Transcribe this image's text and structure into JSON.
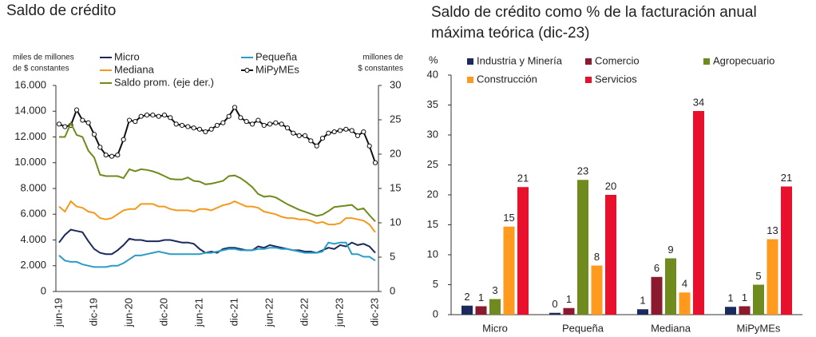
{
  "chart_data": [
    {
      "type": "line",
      "title": [
        "Saldo de crédito"
      ],
      "y_label": [
        "miles de millones",
        "de $ constantes"
      ],
      "y2_label": [
        "millones de",
        "$ constantes"
      ],
      "categories": [
        "jun-19",
        null,
        null,
        null,
        null,
        null,
        "dic-19",
        null,
        null,
        null,
        null,
        null,
        "jun-20",
        null,
        null,
        null,
        null,
        null,
        "dic-20",
        null,
        null,
        null,
        null,
        null,
        "jun-21",
        null,
        null,
        null,
        null,
        null,
        "dic-21",
        null,
        null,
        null,
        null,
        null,
        "jun-22",
        null,
        null,
        null,
        null,
        null,
        "dic-22",
        null,
        null,
        null,
        null,
        null,
        "jun-23",
        null,
        null,
        null,
        null,
        null,
        "dic-23"
      ],
      "ylim": [
        0,
        16000
      ],
      "yticks": [
        0,
        {
          "value": 2000,
          "label": "2.000"
        },
        {
          "value": 4000,
          "label": "4.000"
        },
        {
          "value": 6000,
          "label": "6.000"
        },
        {
          "value": 8000,
          "label": "8.000"
        },
        {
          "value": 10000,
          "label": "10.000"
        },
        {
          "value": 12000,
          "label": "12.000"
        },
        {
          "value": 14000,
          "label": "14.000"
        },
        {
          "value": 16000,
          "label": "16.000"
        }
      ],
      "y2lim": [
        0,
        30
      ],
      "y2ticks": [
        0,
        5,
        10,
        15,
        20,
        25,
        30
      ],
      "series": [
        {
          "name": "Micro",
          "color": "#1b2a5c",
          "values": [
            3800,
            4400,
            4800,
            4700,
            4600,
            3900,
            3300,
            3000,
            2900,
            2900,
            3200,
            3600,
            4100,
            4000,
            4000,
            3900,
            3900,
            3900,
            4000,
            4000,
            3900,
            3800,
            3800,
            3700,
            3300,
            3000,
            3100,
            3000,
            3300,
            3400,
            3400,
            3300,
            3200,
            3200,
            3500,
            3400,
            3600,
            3500,
            3400,
            3300,
            3200,
            3200,
            3100,
            3100,
            3000,
            3200,
            3400,
            3300,
            3600,
            3500,
            3800,
            3600,
            3700,
            3500,
            3000
          ]
        },
        {
          "name": "Pequeña",
          "color": "#2b9cc8",
          "values": [
            2800,
            2400,
            2300,
            2300,
            2100,
            2000,
            1900,
            1900,
            1900,
            2000,
            2000,
            2200,
            2500,
            2800,
            2800,
            2900,
            3000,
            3100,
            3000,
            2900,
            2900,
            2900,
            2900,
            2900,
            2900,
            3000,
            3000,
            3100,
            3200,
            3300,
            3300,
            3200,
            3200,
            3200,
            3300,
            3300,
            3400,
            3400,
            3300,
            3300,
            3200,
            3100,
            3000,
            3000,
            3000,
            3100,
            3800,
            3700,
            3800,
            3800,
            2900,
            2900,
            2700,
            2700,
            2400
          ]
        },
        {
          "name": "Mediana",
          "color": "#f39a1e",
          "values": [
            6600,
            6200,
            7000,
            6600,
            6500,
            6200,
            6100,
            5700,
            5600,
            5700,
            6000,
            6300,
            6400,
            6400,
            6800,
            6800,
            6800,
            6600,
            6600,
            6400,
            6300,
            6300,
            6300,
            6200,
            6400,
            6400,
            6300,
            6500,
            6700,
            6800,
            7000,
            6800,
            6600,
            6600,
            6500,
            6200,
            6100,
            6000,
            5800,
            5700,
            5700,
            5600,
            5600,
            5500,
            5300,
            5400,
            5200,
            5200,
            5300,
            5700,
            5700,
            5600,
            5500,
            5200,
            4600
          ]
        },
        {
          "name": "MiPyMEs",
          "color": "#111111",
          "marker": "circle",
          "values": [
            13000,
            12800,
            12900,
            14100,
            13300,
            13100,
            12200,
            11200,
            10600,
            10500,
            10600,
            11800,
            13300,
            13200,
            13600,
            13700,
            13700,
            13600,
            13700,
            13500,
            13000,
            12900,
            12800,
            12700,
            12600,
            12400,
            12600,
            12900,
            13100,
            13600,
            14300,
            13500,
            13200,
            13000,
            13300,
            12900,
            13000,
            13100,
            13000,
            12700,
            12300,
            12100,
            12100,
            11700,
            11300,
            11900,
            12300,
            12400,
            12500,
            12600,
            12500,
            12100,
            12400,
            11300,
            10000
          ]
        },
        {
          "name": "Saldo prom. (eje der.)",
          "color": "#6f8b1d",
          "axis": "y2",
          "values": [
            22.5,
            22.5,
            24.5,
            22.8,
            22.5,
            20.5,
            19.5,
            17,
            16.8,
            16.8,
            16.8,
            16.5,
            17.8,
            17.5,
            17.8,
            17.7,
            17.5,
            17.2,
            16.8,
            16.4,
            16.3,
            16.3,
            16.6,
            16.1,
            16.0,
            15.6,
            15.7,
            15.9,
            16.1,
            16.8,
            16.9,
            16.5,
            15.9,
            15.2,
            14.2,
            13.8,
            13.9,
            13.7,
            13.2,
            12.7,
            12.3,
            11.9,
            11.6,
            11.3,
            11.0,
            11.2,
            11.7,
            12.3,
            12.4,
            12.5,
            12.6,
            11.9,
            12.1,
            11.1,
            10.2
          ]
        }
      ]
    },
    {
      "type": "bar",
      "title": [
        "Saldo de crédito como % de la facturación anual",
        "máxima teórica (dic-23)"
      ],
      "y_label": [
        "%"
      ],
      "categories": [
        "Micro",
        "Pequeña",
        "Mediana",
        "MiPyMEs"
      ],
      "ylim": [
        0,
        40
      ],
      "yticks": [
        0,
        5,
        10,
        15,
        20,
        25,
        30,
        35,
        40
      ],
      "series": [
        {
          "name": "Industria y Minería",
          "color": "#1b2a5c",
          "values": [
            1.5,
            0.3,
            0.9,
            1.3
          ],
          "value_labels": [
            "2",
            "0",
            "1",
            "1"
          ]
        },
        {
          "name": "Comercio",
          "color": "#8b1a2e",
          "values": [
            1.4,
            1.1,
            6.3,
            1.4
          ],
          "value_labels": [
            "1",
            "1",
            "6",
            "1"
          ]
        },
        {
          "name": "Agropecuario",
          "color": "#6f8b1d",
          "values": [
            2.6,
            22.5,
            9.4,
            5.0
          ],
          "value_labels": [
            "3",
            "23",
            "9",
            "5"
          ]
        },
        {
          "name": "Construcción",
          "color": "#ff9a1f",
          "values": [
            14.7,
            8.2,
            3.7,
            12.6
          ],
          "value_labels": [
            "15",
            "8",
            "4",
            "13"
          ]
        },
        {
          "name": "Servicios",
          "color": "#e8112d",
          "values": [
            21.3,
            20.0,
            34.0,
            21.4
          ],
          "value_labels": [
            "21",
            "20",
            "34",
            "21"
          ]
        }
      ]
    }
  ]
}
